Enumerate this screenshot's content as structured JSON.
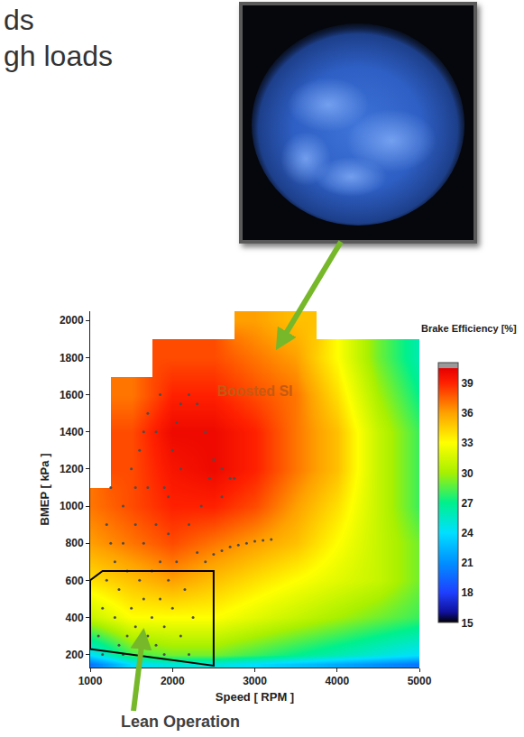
{
  "slide_text": [
    "ds",
    "gh loads"
  ],
  "chart_data": {
    "type": "heatmap",
    "x_label": "Speed [ RPM ]",
    "y_label": "BMEP [ kPa ]",
    "x": [
      1000,
      1500,
      2000,
      2500,
      3000,
      3500,
      4000,
      4500,
      5000
    ],
    "y": [
      150,
      200,
      400,
      600,
      800,
      1000,
      1200,
      1400,
      1600,
      1800,
      2000
    ],
    "z": [
      [
        20,
        24,
        25,
        25,
        24,
        23,
        22,
        21,
        20
      ],
      [
        24,
        28,
        29,
        29,
        28,
        27,
        26,
        25,
        24
      ],
      [
        31,
        33,
        33,
        33,
        32,
        31,
        30,
        29,
        28
      ],
      [
        34,
        35,
        36,
        35,
        34,
        33,
        32,
        31,
        29
      ],
      [
        36,
        37,
        38,
        37,
        36,
        35,
        33,
        31,
        29
      ],
      [
        37,
        38,
        39,
        39,
        38,
        36,
        34,
        31,
        28
      ],
      [
        null,
        38,
        39.5,
        40,
        39,
        37,
        35,
        31,
        28
      ],
      [
        null,
        38,
        40,
        40,
        39,
        37,
        35,
        31,
        28
      ],
      [
        null,
        37,
        39,
        39,
        38,
        37,
        34,
        30,
        27
      ],
      [
        null,
        null,
        38,
        38,
        37,
        36,
        33,
        29,
        26
      ],
      [
        null,
        null,
        null,
        null,
        36,
        35,
        null,
        null,
        null
      ]
    ],
    "colorbar": {
      "title": "Brake Efficiency [%]",
      "range": [
        15,
        41
      ],
      "ticks": [
        15,
        18,
        21,
        24,
        27,
        30,
        33,
        36,
        39
      ]
    },
    "xlim": [
      1000,
      5000
    ],
    "xticks": [
      1000,
      2000,
      3000,
      4000,
      5000
    ],
    "ylim": [
      130,
      2050
    ],
    "yticks": [
      200,
      400,
      600,
      800,
      1000,
      1200,
      1400,
      1600,
      1800,
      2000
    ],
    "grid": false,
    "drive_cycle": {
      "type": "scatter",
      "marker": "circle",
      "color": "#4d4d4d",
      "x": [
        1100,
        1150,
        1200,
        1200,
        1250,
        1300,
        1300,
        1350,
        1350,
        1400,
        1400,
        1450,
        1450,
        1500,
        1500,
        1550,
        1550,
        1600,
        1600,
        1600,
        1650,
        1650,
        1700,
        1700,
        1700,
        1750,
        1750,
        1800,
        1800,
        1800,
        1850,
        1850,
        1900,
        1900,
        1950,
        1950,
        2000,
        2000,
        2050,
        2100,
        2200,
        2300,
        2400,
        2500,
        2600,
        2700,
        2050,
        2100,
        2150,
        2200,
        2250,
        2300,
        2400,
        2500,
        2600,
        2700,
        2800,
        2900,
        3000,
        3100,
        3200,
        2350,
        2450,
        2600,
        2750,
        1950,
        2100,
        1850,
        1650,
        1550,
        1250,
        1150,
        1400,
        1900,
        2200
      ],
      "y": [
        300,
        450,
        600,
        900,
        1100,
        400,
        700,
        250,
        550,
        1000,
        800,
        300,
        650,
        450,
        1200,
        350,
        900,
        250,
        600,
        1300,
        500,
        800,
        300,
        1100,
        1500,
        650,
        400,
        900,
        250,
        1400,
        700,
        500,
        350,
        1100,
        600,
        850,
        450,
        1300,
        1450,
        1550,
        1600,
        1550,
        1400,
        1250,
        1200,
        1150,
        700,
        300,
        550,
        900,
        400,
        750,
        700,
        740,
        760,
        780,
        790,
        800,
        810,
        815,
        820,
        1000,
        1150,
        1050,
        1150,
        1050,
        1200,
        1600,
        1400,
        1100,
        800,
        200,
        200,
        200,
        200
      ]
    },
    "lean_region": {
      "type": "line",
      "line_style": "solid",
      "color": "#000000",
      "x": [
        1000,
        1150,
        2500,
        2500,
        1000,
        1000
      ],
      "y": [
        600,
        650,
        650,
        140,
        230,
        600
      ]
    },
    "annotations": [
      {
        "text": "Boosted SI",
        "x": 3000,
        "y": 1620,
        "color": "#c55a11"
      }
    ],
    "callout": "Lean Operation"
  }
}
